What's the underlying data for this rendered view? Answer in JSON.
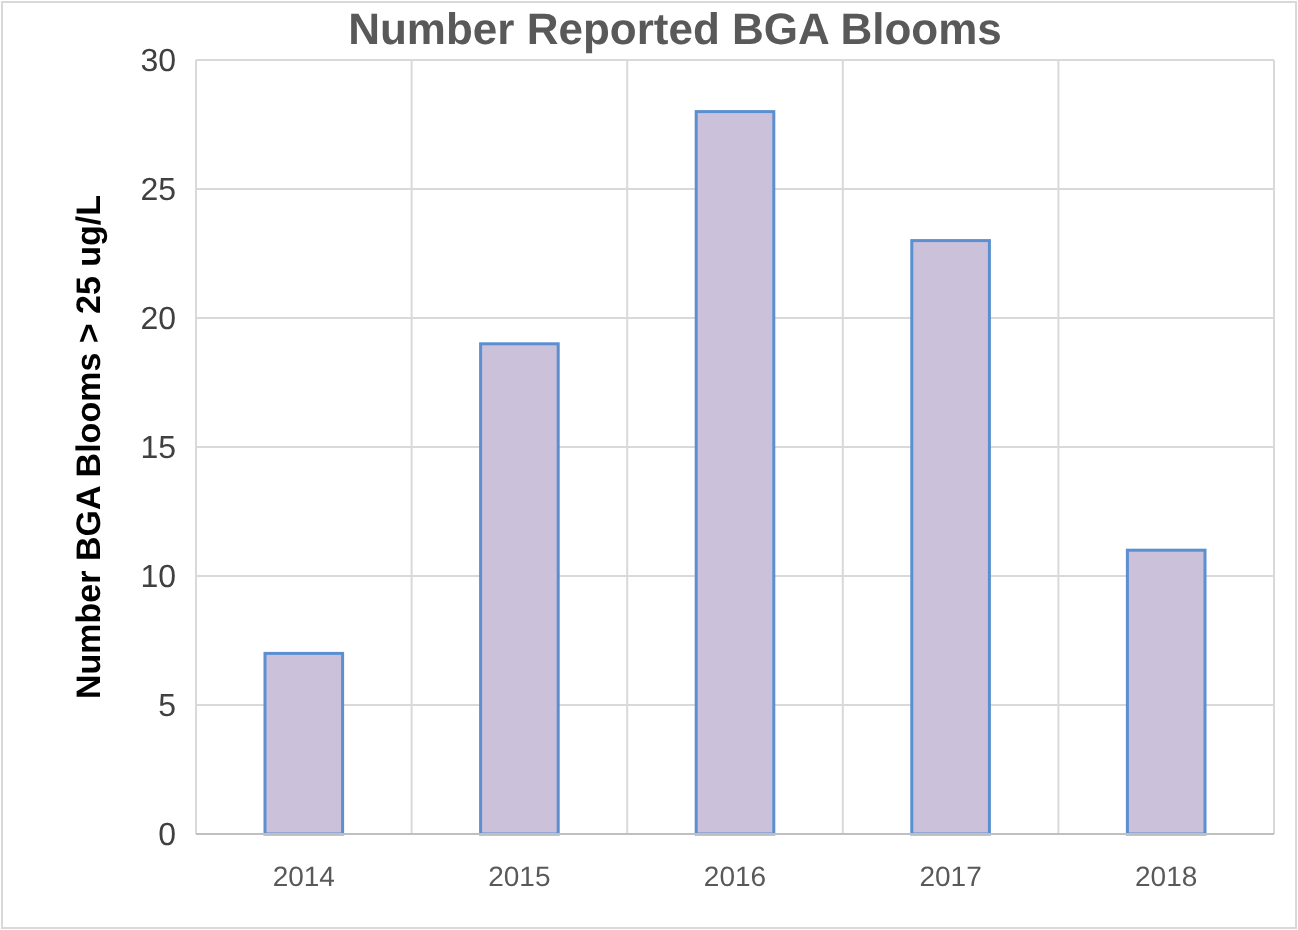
{
  "chart_data": {
    "type": "bar",
    "title": "Number Reported BGA Blooms",
    "ylabel": "Number BGA Blooms > 25 ug/L",
    "categories": [
      "2014",
      "2015",
      "2016",
      "2017",
      "2018"
    ],
    "values": [
      7,
      19,
      28,
      23,
      11
    ],
    "color": "#ccc1da",
    "ylim": [
      0,
      30
    ],
    "yticks": [
      0,
      5,
      10,
      15,
      20,
      25,
      30
    ],
    "grid": true
  }
}
